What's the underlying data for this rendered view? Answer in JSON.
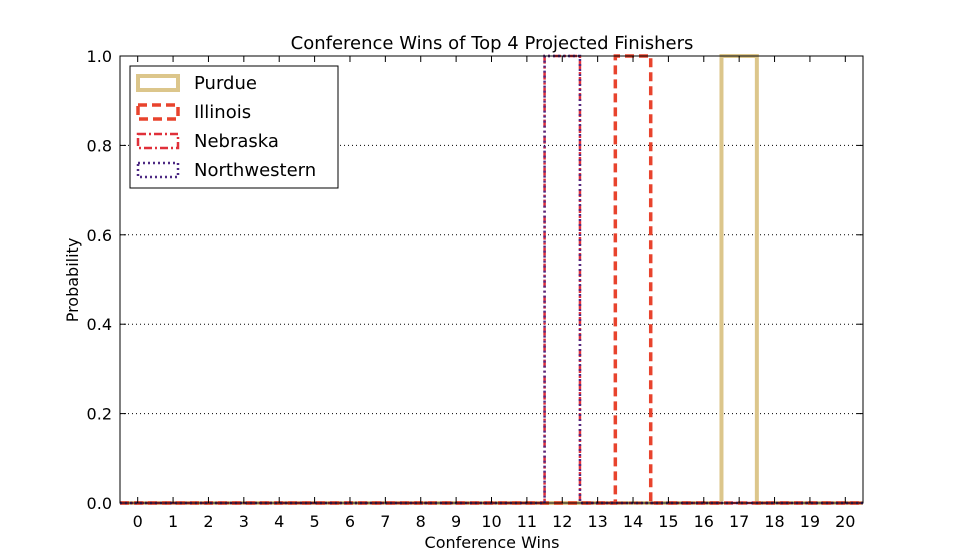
{
  "chart_data": {
    "type": "step",
    "title": "Conference Wins of Top 4 Projected Finishers",
    "xlabel": "Conference Wins",
    "ylabel": "Probability",
    "x_categories": [
      0,
      1,
      2,
      3,
      4,
      5,
      6,
      7,
      8,
      9,
      10,
      11,
      12,
      13,
      14,
      15,
      16,
      17,
      18,
      19,
      20
    ],
    "xlim": [
      -0.5,
      20.5
    ],
    "ylim": [
      0,
      1.0
    ],
    "y_ticks": [
      "0.0",
      "0.2",
      "0.4",
      "0.6",
      "0.8",
      "1.0"
    ],
    "grid": "y-dotted",
    "legend_position": "top-left",
    "series": [
      {
        "name": "Purdue",
        "color": "#dcc68b",
        "style": "solid",
        "values": [
          0,
          0,
          0,
          0,
          0,
          0,
          0,
          0,
          0,
          0,
          0,
          0,
          0,
          0,
          0,
          0,
          0,
          1,
          0,
          0,
          0
        ]
      },
      {
        "name": "Illinois",
        "color": "#e8432d",
        "style": "dashed",
        "values": [
          0,
          0,
          0,
          0,
          0,
          0,
          0,
          0,
          0,
          0,
          0,
          0,
          0,
          0,
          1,
          0,
          0,
          0,
          0,
          0,
          0
        ]
      },
      {
        "name": "Nebraska",
        "color": "#e0303a",
        "style": "dashdot",
        "values": [
          0,
          0,
          0,
          0,
          0,
          0,
          0,
          0,
          0,
          0,
          0,
          0,
          1,
          0,
          0,
          0,
          0,
          0,
          0,
          0,
          0
        ]
      },
      {
        "name": "Northwestern",
        "color": "#4e2a84",
        "style": "dotted",
        "values": [
          0,
          0,
          0,
          0,
          0,
          0,
          0,
          0,
          0,
          0,
          0,
          0,
          1,
          0,
          0,
          0,
          0,
          0,
          0,
          0,
          0
        ]
      }
    ]
  }
}
